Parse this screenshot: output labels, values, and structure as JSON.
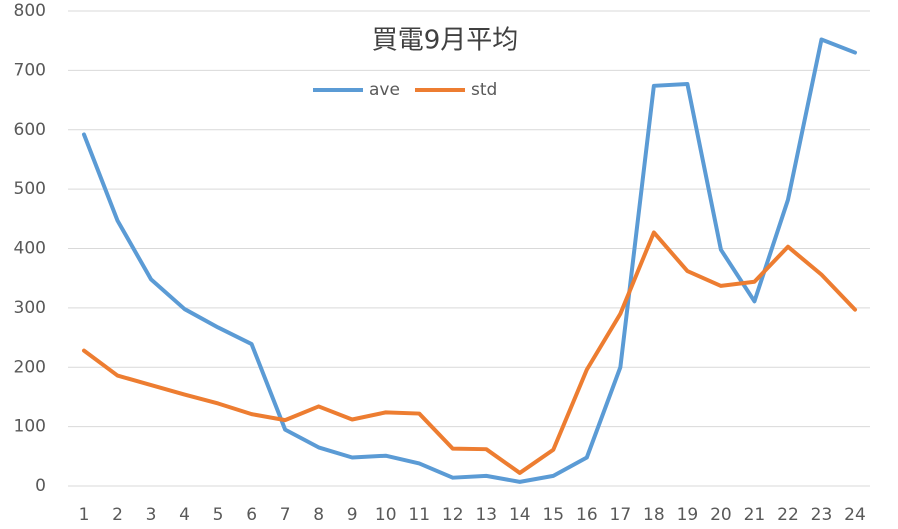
{
  "chart_data": {
    "type": "line",
    "title": "買電9月平均",
    "categories": [
      "1",
      "2",
      "3",
      "4",
      "5",
      "6",
      "7",
      "8",
      "9",
      "10",
      "11",
      "12",
      "13",
      "14",
      "15",
      "16",
      "17",
      "18",
      "19",
      "20",
      "21",
      "22",
      "23",
      "24"
    ],
    "series": [
      {
        "name": "ave",
        "color": "#5b9bd5",
        "values": [
          592,
          447,
          348,
          298,
          267,
          239,
          95,
          65,
          48,
          51,
          38,
          14,
          17,
          7,
          17,
          48,
          200,
          674,
          677,
          398,
          311,
          482,
          752,
          730
        ]
      },
      {
        "name": "std",
        "color": "#ed7d31",
        "values": [
          228,
          186,
          170,
          154,
          139,
          121,
          111,
          134,
          112,
          124,
          122,
          63,
          62,
          22,
          61,
          196,
          290,
          427,
          362,
          337,
          344,
          403,
          356,
          297
        ]
      }
    ],
    "ylim": [
      0,
      800
    ],
    "yticks": [
      0,
      100,
      200,
      300,
      400,
      500,
      600,
      700,
      800
    ],
    "grid": true
  }
}
